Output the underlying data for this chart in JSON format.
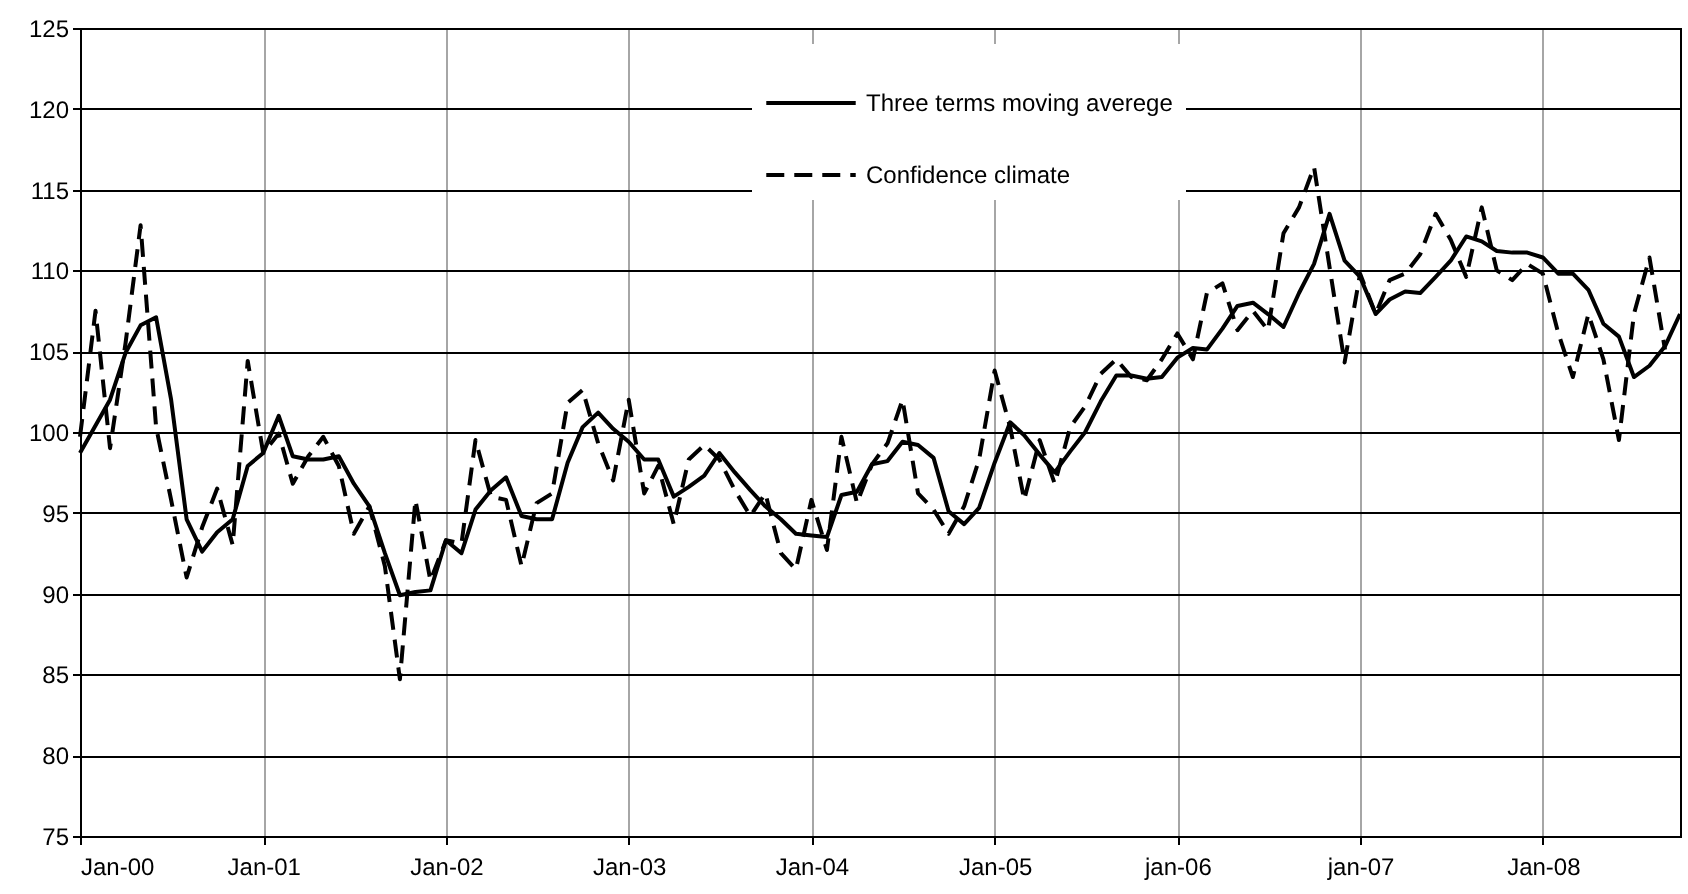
{
  "chart_data": {
    "type": "line",
    "x": [
      "2000-01",
      "2000-02",
      "2000-03",
      "2000-04",
      "2000-05",
      "2000-06",
      "2000-07",
      "2000-08",
      "2000-09",
      "2000-10",
      "2000-11",
      "2000-12",
      "2001-01",
      "2001-02",
      "2001-03",
      "2001-04",
      "2001-05",
      "2001-06",
      "2001-07",
      "2001-08",
      "2001-09",
      "2001-10",
      "2001-11",
      "2001-12",
      "2002-01",
      "2002-02",
      "2002-03",
      "2002-04",
      "2002-05",
      "2002-06",
      "2002-07",
      "2002-08",
      "2002-09",
      "2002-10",
      "2002-11",
      "2002-12",
      "2003-01",
      "2003-02",
      "2003-03",
      "2003-04",
      "2003-05",
      "2003-06",
      "2003-07",
      "2003-08",
      "2003-09",
      "2003-10",
      "2003-11",
      "2003-12",
      "2004-01",
      "2004-02",
      "2004-03",
      "2004-04",
      "2004-05",
      "2004-06",
      "2004-07",
      "2004-08",
      "2004-09",
      "2004-10",
      "2004-11",
      "2004-12",
      "2005-01",
      "2005-02",
      "2005-03",
      "2005-04",
      "2005-05",
      "2005-06",
      "2005-07",
      "2005-08",
      "2005-09",
      "2005-10",
      "2005-11",
      "2005-12",
      "2006-01",
      "2006-02",
      "2006-03",
      "2006-04",
      "2006-05",
      "2006-06",
      "2006-07",
      "2006-08",
      "2006-09",
      "2006-10",
      "2006-11",
      "2006-12",
      "2007-01",
      "2007-02",
      "2007-03",
      "2007-04",
      "2007-05",
      "2007-06",
      "2007-07",
      "2007-08",
      "2007-09",
      "2007-10",
      "2007-11",
      "2007-12",
      "2008-01",
      "2008-02",
      "2008-03",
      "2008-04",
      "2008-05",
      "2008-06",
      "2008-07",
      "2008-08",
      "2008-09",
      "2008-10"
    ],
    "series": [
      {
        "name": "Three terms moving averege",
        "color": "#000000",
        "line_style": "solid",
        "values": [
          98.7,
          100.4,
          102,
          104.9,
          106.6,
          107.1,
          102,
          94.6,
          92.6,
          93.8,
          94.6,
          97.9,
          98.7,
          101,
          98.5,
          98.3,
          98.3,
          98.5,
          96.8,
          95.4,
          92.5,
          89.9,
          90.1,
          90.2,
          93.3,
          92.5,
          95.2,
          96.4,
          97.2,
          94.8,
          94.6,
          94.6,
          98.1,
          100.3,
          101.2,
          100.2,
          99.4,
          98.3,
          98.3,
          96,
          96.6,
          97.3,
          98.7,
          97.5,
          96.4,
          95.4,
          94.6,
          93.7,
          93.6,
          93.5,
          96.1,
          96.3,
          98,
          98.2,
          99.4,
          99.2,
          98.4,
          95.1,
          94.3,
          95.3,
          98.1,
          100.6,
          99.8,
          98.6,
          97.5,
          98.8,
          100,
          101.9,
          103.5,
          103.5,
          103.3,
          103.4,
          104.6,
          105.2,
          105.1,
          106.4,
          107.8,
          108,
          107.3,
          106.5,
          108.6,
          110.4,
          113.5,
          110.6,
          109.6,
          107.3,
          108.2,
          108.7,
          108.6,
          109.6,
          110.6,
          112.1,
          111.8,
          111.2,
          111.1,
          111.1,
          110.8,
          109.8,
          109.8,
          108.8,
          106.7,
          105.9,
          103.4,
          104.1,
          105.3,
          107.3
        ]
      },
      {
        "name": "Confidence climate",
        "color": "#000000",
        "line_style": "dashed",
        "values": [
          99.7,
          107.5,
          99,
          105.5,
          112.8,
          100.3,
          95.8,
          91,
          94.1,
          96.5,
          93,
          104.4,
          98.7,
          99.9,
          96.8,
          98.5,
          99.7,
          97.9,
          93.7,
          95.4,
          91.7,
          84.7,
          95.8,
          90.8,
          93.3,
          93.1,
          99.5,
          96,
          95.8,
          91.7,
          95.6,
          96.2,
          101.8,
          102.6,
          99.3,
          97,
          102,
          96.2,
          97.9,
          94.3,
          98.3,
          99.2,
          98.3,
          96.4,
          94.8,
          96.2,
          92.5,
          91.5,
          95.8,
          92.7,
          99.7,
          95.6,
          98,
          99.3,
          102,
          96.2,
          95.2,
          93.7,
          95.4,
          98.3,
          103.8,
          100.3,
          95.8,
          99.5,
          96.8,
          100.3,
          101.6,
          103.6,
          104.5,
          103.4,
          103.2,
          104.5,
          106.1,
          104.5,
          108.6,
          109.2,
          106.3,
          107.5,
          106.3,
          112.3,
          113.9,
          116.4,
          110.2,
          104.3,
          109.8,
          107.3,
          109.4,
          109.8,
          111,
          113.5,
          111.9,
          109.6,
          113.9,
          110,
          109.4,
          110.4,
          109.8,
          106.1,
          103.4,
          107.3,
          104.5,
          99.5,
          107.3,
          110.8,
          105.1,
          null
        ]
      }
    ],
    "xlim": [
      "2000-01",
      "2008-10"
    ],
    "xticks": [
      {
        "value": "2000-01",
        "label": "Jan-00"
      },
      {
        "value": "2001-01",
        "label": "Jan-01"
      },
      {
        "value": "2002-01",
        "label": "Jan-02"
      },
      {
        "value": "2003-01",
        "label": "Jan-03"
      },
      {
        "value": "2004-01",
        "label": "Jan-04"
      },
      {
        "value": "2005-01",
        "label": "Jan-05"
      },
      {
        "value": "2006-01",
        "label": "jan-06"
      },
      {
        "value": "2007-01",
        "label": "jan-07"
      },
      {
        "value": "2008-01",
        "label": "Jan-08"
      }
    ],
    "ylim": [
      75,
      125
    ],
    "yticks": [
      75,
      80,
      85,
      90,
      95,
      100,
      105,
      110,
      115,
      120,
      125
    ],
    "grid": true,
    "legend": "top",
    "marker": "none"
  }
}
